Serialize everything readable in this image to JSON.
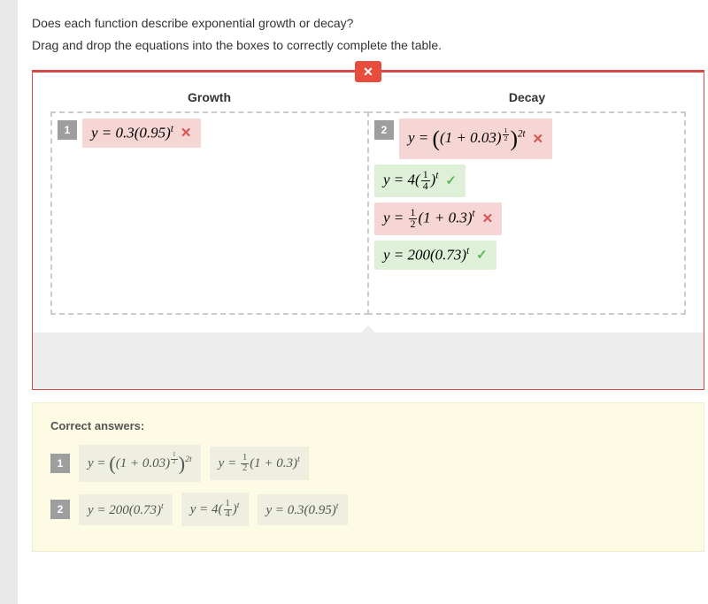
{
  "colors": {
    "panel_border": "#d44a4a",
    "close_bg": "#e74c3c",
    "wrong_bg": "#f6d5d5",
    "right_bg": "#dff0d8",
    "wrong_mark": "#d9534f",
    "right_mark": "#5cb85c",
    "gray_strip": "#ededed",
    "correct_panel_bg": "#fdfbe4",
    "badge_bg": "#9e9e9e",
    "drop_border": "#cccccc"
  },
  "prompt": "Does each function describe exponential growth or decay?",
  "instruction": "Drag and drop the equations into the boxes to correctly complete the table.",
  "close_icon": "✕",
  "headers": {
    "growth": "Growth",
    "decay": "Decay"
  },
  "badges": {
    "one": "1",
    "two": "2"
  },
  "marks": {
    "wrong": "✕",
    "right": "✓"
  },
  "student_answer": {
    "growth": [
      {
        "badge": "1",
        "html": "y = 0.3(0.95)<sup>t</sup>",
        "status": "wrong"
      }
    ],
    "decay": [
      {
        "badge": "2",
        "html_big": true,
        "status": "wrong"
      },
      {
        "html": "y = 4(<span class='frac'><span class='n'>1</span><span class='d'>4</span></span>)<sup>t</sup>",
        "status": "right"
      },
      {
        "html": "y = <span class='frac'><span class='n'>1</span><span class='d'>2</span></span>(1 + 0.3)<sup>t</sup>",
        "status": "wrong"
      },
      {
        "html": "y = 200(0.73)<sup>t</sup>",
        "status": "right"
      }
    ]
  },
  "correct_title": "Correct answers:",
  "correct_rows": [
    {
      "badge": "1",
      "chips": [
        "big",
        "y = <span class='frac'><span class='n'>1</span><span class='d'>2</span></span>(1 + 0.3)<sup>t</sup>"
      ]
    },
    {
      "badge": "2",
      "chips": [
        "y = 200(0.73)<sup>t</sup>",
        "y = 4(<span class='frac'><span class='n'>1</span><span class='d'>4</span></span>)<sup>t</sup>",
        "y = 0.3(0.95)<sup>t</sup>"
      ]
    }
  ],
  "big_expr_html": "y = <span class='bigparen'>(</span>(1 + 0.03)<sup><span class='frac'><span class='n'>1</span><span class='d'>2</span></span></sup><span class='bigparen'>)</span><sup>2t</sup>"
}
